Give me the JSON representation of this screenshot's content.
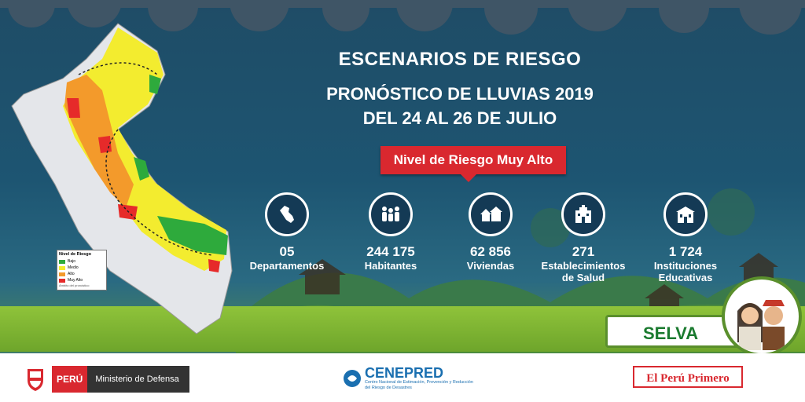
{
  "header": {
    "title": "ESCENARIOS DE RIESGO",
    "subtitle_line1": "PRONÓSTICO DE LLUVIAS 2019",
    "subtitle_line2": "DEL 24 AL 26 DE JULIO"
  },
  "risk_badge": "Nivel de Riesgo Muy Alto",
  "stats": [
    {
      "value": "05",
      "label1": "Departamentos",
      "label2": "",
      "icon": "peru-map-icon"
    },
    {
      "value": "244 175",
      "label1": "Habitantes",
      "label2": "",
      "icon": "people-icon"
    },
    {
      "value": "62 856",
      "label1": "Viviendas",
      "label2": "",
      "icon": "houses-icon"
    },
    {
      "value": "271",
      "label1": "Establecimientos",
      "label2": "de Salud",
      "icon": "hospital-icon"
    },
    {
      "value": "1 724",
      "label1": "Instituciones",
      "label2": "Educativas",
      "icon": "school-icon"
    }
  ],
  "region": "SELVA",
  "legend": {
    "title": "Nivel de Riesgo",
    "items": [
      {
        "label": "Bajo",
        "color": "#2eaa3c"
      },
      {
        "label": "Medio",
        "color": "#f3ec2f"
      },
      {
        "label": "Alto",
        "color": "#f39a2b"
      },
      {
        "label": "Muy Alto",
        "color": "#e62a2a"
      }
    ],
    "note": "Ámbito del pronóstico"
  },
  "footer": {
    "peru": "PERÚ",
    "ministry": "Ministerio de Defensa",
    "cenepred_name": "CENEPRED",
    "cenepred_desc": "Centro Nacional de Estimación, Prevención y Reducción del Riesgo de Desastres",
    "slogan": "El Perú Primero"
  },
  "colors": {
    "accent_red": "#d9282f",
    "region_green": "#1a7a2f",
    "bg_blue": "#1f4c66"
  }
}
